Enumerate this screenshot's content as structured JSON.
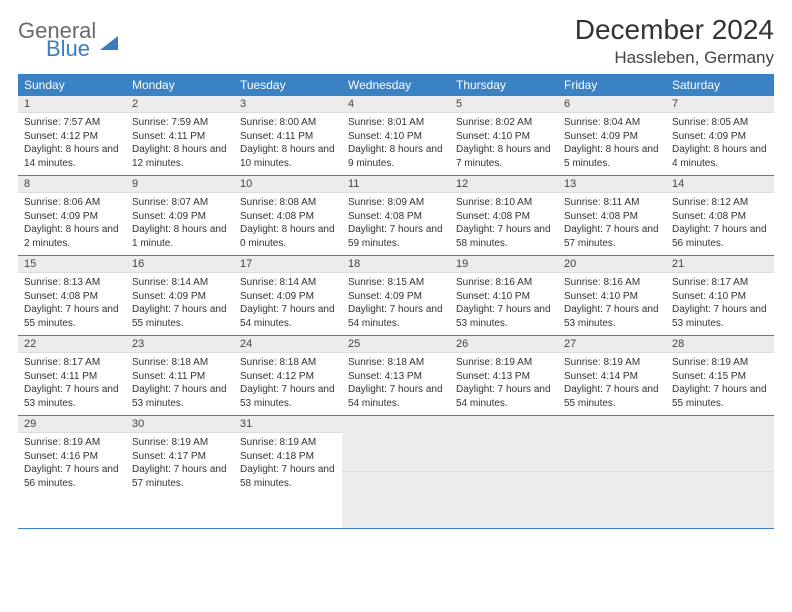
{
  "brand": {
    "t1": "General",
    "t2": "Blue"
  },
  "title": {
    "month": "December 2024",
    "location": "Hassleben, Germany"
  },
  "colors": {
    "header_bg": "#3a82c4",
    "header_fg": "#ffffff",
    "daynum_bg": "#ececec",
    "border": "#3a82c4"
  },
  "dayHeaders": [
    "Sunday",
    "Monday",
    "Tuesday",
    "Wednesday",
    "Thursday",
    "Friday",
    "Saturday"
  ],
  "weeks": [
    [
      {
        "n": "1",
        "r": "7:57 AM",
        "s": "4:12 PM",
        "d": "8 hours and 14 minutes."
      },
      {
        "n": "2",
        "r": "7:59 AM",
        "s": "4:11 PM",
        "d": "8 hours and 12 minutes."
      },
      {
        "n": "3",
        "r": "8:00 AM",
        "s": "4:11 PM",
        "d": "8 hours and 10 minutes."
      },
      {
        "n": "4",
        "r": "8:01 AM",
        "s": "4:10 PM",
        "d": "8 hours and 9 minutes."
      },
      {
        "n": "5",
        "r": "8:02 AM",
        "s": "4:10 PM",
        "d": "8 hours and 7 minutes."
      },
      {
        "n": "6",
        "r": "8:04 AM",
        "s": "4:09 PM",
        "d": "8 hours and 5 minutes."
      },
      {
        "n": "7",
        "r": "8:05 AM",
        "s": "4:09 PM",
        "d": "8 hours and 4 minutes."
      }
    ],
    [
      {
        "n": "8",
        "r": "8:06 AM",
        "s": "4:09 PM",
        "d": "8 hours and 2 minutes."
      },
      {
        "n": "9",
        "r": "8:07 AM",
        "s": "4:09 PM",
        "d": "8 hours and 1 minute."
      },
      {
        "n": "10",
        "r": "8:08 AM",
        "s": "4:08 PM",
        "d": "8 hours and 0 minutes."
      },
      {
        "n": "11",
        "r": "8:09 AM",
        "s": "4:08 PM",
        "d": "7 hours and 59 minutes."
      },
      {
        "n": "12",
        "r": "8:10 AM",
        "s": "4:08 PM",
        "d": "7 hours and 58 minutes."
      },
      {
        "n": "13",
        "r": "8:11 AM",
        "s": "4:08 PM",
        "d": "7 hours and 57 minutes."
      },
      {
        "n": "14",
        "r": "8:12 AM",
        "s": "4:08 PM",
        "d": "7 hours and 56 minutes."
      }
    ],
    [
      {
        "n": "15",
        "r": "8:13 AM",
        "s": "4:08 PM",
        "d": "7 hours and 55 minutes."
      },
      {
        "n": "16",
        "r": "8:14 AM",
        "s": "4:09 PM",
        "d": "7 hours and 55 minutes."
      },
      {
        "n": "17",
        "r": "8:14 AM",
        "s": "4:09 PM",
        "d": "7 hours and 54 minutes."
      },
      {
        "n": "18",
        "r": "8:15 AM",
        "s": "4:09 PM",
        "d": "7 hours and 54 minutes."
      },
      {
        "n": "19",
        "r": "8:16 AM",
        "s": "4:10 PM",
        "d": "7 hours and 53 minutes."
      },
      {
        "n": "20",
        "r": "8:16 AM",
        "s": "4:10 PM",
        "d": "7 hours and 53 minutes."
      },
      {
        "n": "21",
        "r": "8:17 AM",
        "s": "4:10 PM",
        "d": "7 hours and 53 minutes."
      }
    ],
    [
      {
        "n": "22",
        "r": "8:17 AM",
        "s": "4:11 PM",
        "d": "7 hours and 53 minutes."
      },
      {
        "n": "23",
        "r": "8:18 AM",
        "s": "4:11 PM",
        "d": "7 hours and 53 minutes."
      },
      {
        "n": "24",
        "r": "8:18 AM",
        "s": "4:12 PM",
        "d": "7 hours and 53 minutes."
      },
      {
        "n": "25",
        "r": "8:18 AM",
        "s": "4:13 PM",
        "d": "7 hours and 54 minutes."
      },
      {
        "n": "26",
        "r": "8:19 AM",
        "s": "4:13 PM",
        "d": "7 hours and 54 minutes."
      },
      {
        "n": "27",
        "r": "8:19 AM",
        "s": "4:14 PM",
        "d": "7 hours and 55 minutes."
      },
      {
        "n": "28",
        "r": "8:19 AM",
        "s": "4:15 PM",
        "d": "7 hours and 55 minutes."
      }
    ],
    [
      {
        "n": "29",
        "r": "8:19 AM",
        "s": "4:16 PM",
        "d": "7 hours and 56 minutes."
      },
      {
        "n": "30",
        "r": "8:19 AM",
        "s": "4:17 PM",
        "d": "7 hours and 57 minutes."
      },
      {
        "n": "31",
        "r": "8:19 AM",
        "s": "4:18 PM",
        "d": "7 hours and 58 minutes."
      },
      {
        "empty": true
      },
      {
        "empty": true
      },
      {
        "empty": true
      },
      {
        "empty": true
      }
    ]
  ],
  "labels": {
    "sunrise": "Sunrise: ",
    "sunset": "Sunset: ",
    "daylight": "Daylight: "
  }
}
